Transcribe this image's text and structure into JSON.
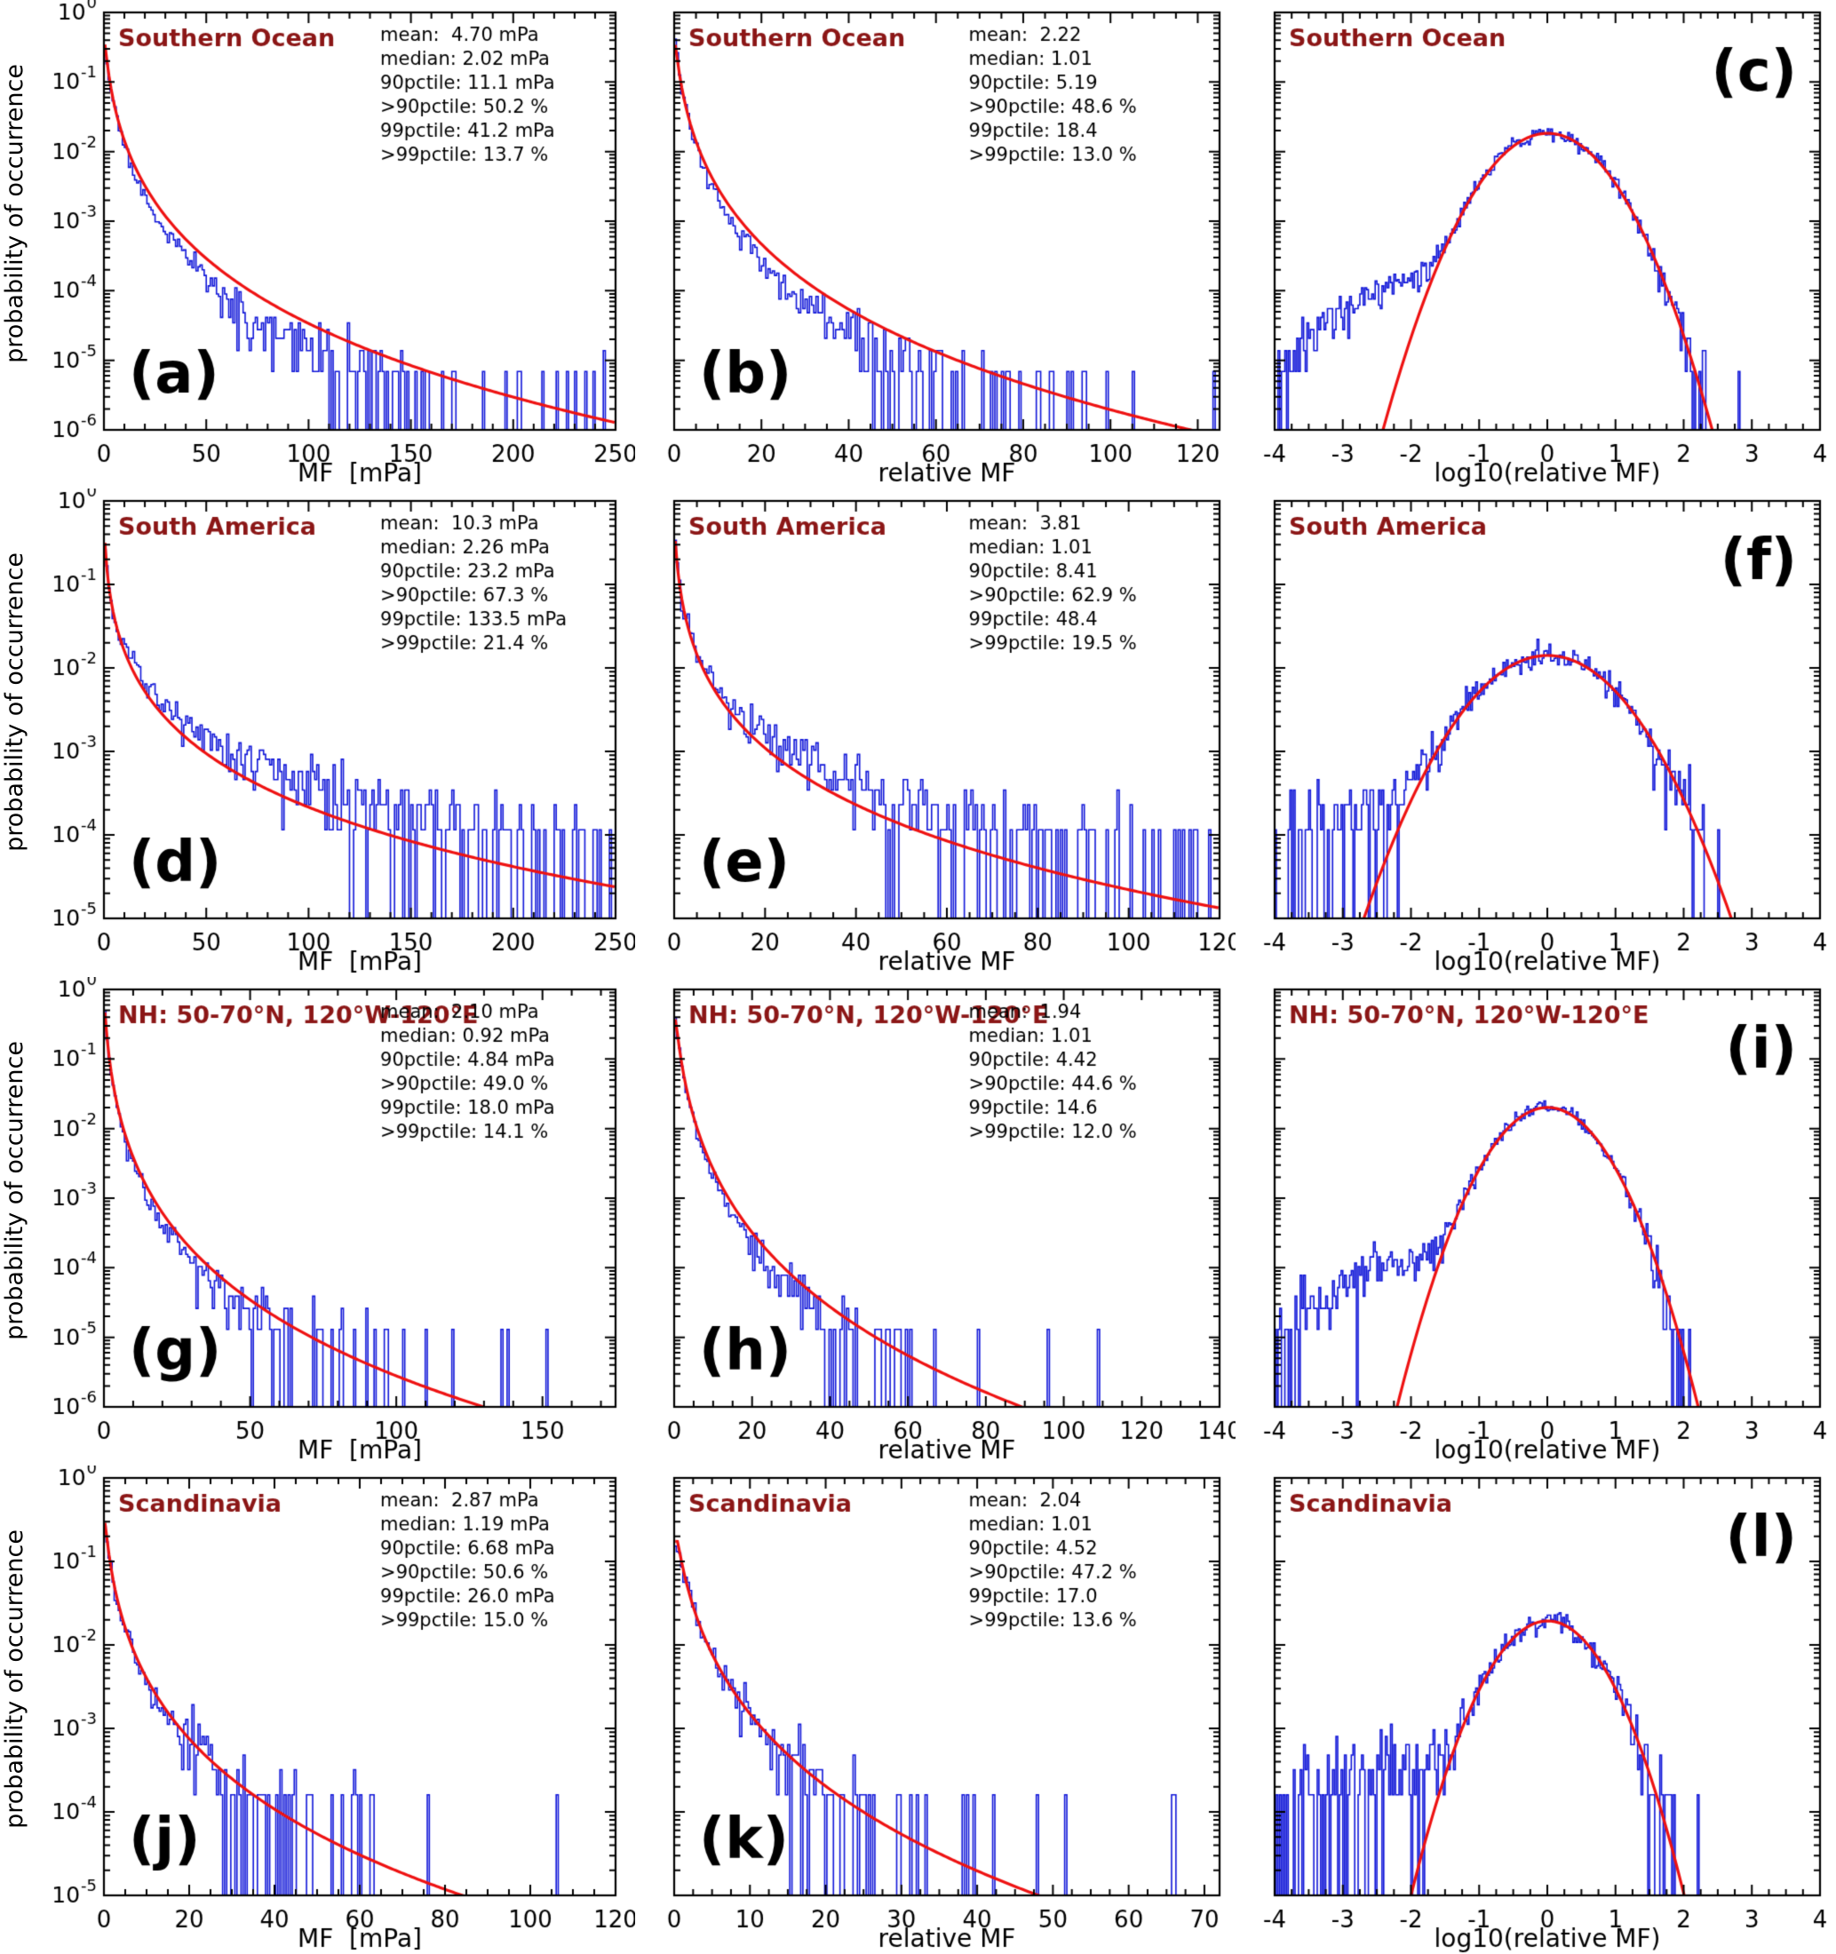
{
  "figure": {
    "ylabel": "probability of occurrence",
    "colors": {
      "histogram_blue": "#1016d8",
      "fit_red": "#ee1111",
      "region_label": "#8b1616",
      "axis": "#000000",
      "panel_letter": "#000000"
    }
  },
  "chart_data": [
    {
      "panel_letter": "(a)",
      "letter_pos": "bl",
      "type": "line",
      "region": "Southern Ocean",
      "xlabel": "MF  [mPa]",
      "xlim": [
        0,
        250
      ],
      "xticks": [
        0,
        50,
        100,
        150,
        200,
        250
      ],
      "xminor": 10,
      "ylim_exp": [
        -6,
        0
      ],
      "show_ytick_labels": true,
      "stats": [
        "mean:  4.70 mPa",
        "median: 2.02 mPa",
        "90pctile: 11.1 mPa",
        ">90pctile: 50.2 %",
        "99pctile: 41.2 mPa",
        ">99pctile: 13.7 %"
      ],
      "model": {
        "dist": "lognormal-x",
        "median": 2.02,
        "mean": 4.7,
        "nbins": 250,
        "single_prob": 6.9e-06,
        "mid_bias": -0.9,
        "seed": 11
      }
    },
    {
      "panel_letter": "(b)",
      "letter_pos": "bl",
      "type": "line",
      "region": "Southern Ocean",
      "xlabel": "relative MF",
      "xlim": [
        0,
        125
      ],
      "xticks": [
        0,
        20,
        40,
        60,
        80,
        100,
        120
      ],
      "xminor": 5,
      "ylim_exp": [
        -6,
        0
      ],
      "show_ytick_labels": false,
      "stats": [
        "mean:  2.22",
        "median: 1.01",
        "90pctile: 5.19",
        ">90pctile: 48.6 %",
        "99pctile: 18.4",
        ">99pctile: 13.0 %"
      ],
      "model": {
        "dist": "lognormal-x",
        "median": 1.01,
        "mean": 2.22,
        "nbins": 250,
        "single_prob": 6.9e-06,
        "mid_bias": -0.9,
        "seed": 12
      }
    },
    {
      "panel_letter": "(c)",
      "letter_pos": "tr",
      "type": "line",
      "region": "Southern Ocean",
      "xlabel": "log10(relative MF)",
      "xlim": [
        -4,
        4
      ],
      "xticks": [
        -4,
        -3,
        -2,
        -1,
        0,
        1,
        2,
        3,
        4
      ],
      "xminor": 0.25,
      "ylim_exp": [
        -6,
        0
      ],
      "show_ytick_labels": false,
      "stats": [],
      "model": {
        "dist": "lognormal-log10",
        "median": 1.01,
        "mean": 2.22,
        "nbins": 320,
        "single_prob": 6.9e-06,
        "tail": {
          "amp": 0.00012,
          "mu": -2.0,
          "sigma": 0.8
        },
        "seed": 13
      }
    },
    {
      "panel_letter": "(d)",
      "letter_pos": "bl",
      "type": "line",
      "region": "South America",
      "xlabel": "MF  [mPa]",
      "xlim": [
        0,
        250
      ],
      "xticks": [
        0,
        50,
        100,
        150,
        200,
        250
      ],
      "xminor": 10,
      "ylim_exp": [
        -5,
        0
      ],
      "show_ytick_labels": true,
      "stats": [
        "mean:  10.3 mPa",
        "median: 2.26 mPa",
        "90pctile: 23.2 mPa",
        ">90pctile: 67.3 %",
        "99pctile: 133.5 mPa",
        ">99pctile: 21.4 %"
      ],
      "model": {
        "dist": "lognormal-x",
        "median": 2.26,
        "mean": 10.3,
        "nbins": 250,
        "single_prob": 0.000115,
        "mid_bias": 0.7,
        "seed": 21
      }
    },
    {
      "panel_letter": "(e)",
      "letter_pos": "bl",
      "type": "line",
      "region": "South America",
      "xlabel": "relative MF",
      "xlim": [
        0,
        120
      ],
      "xticks": [
        0,
        20,
        40,
        60,
        80,
        100,
        120
      ],
      "xminor": 5,
      "ylim_exp": [
        -5,
        0
      ],
      "show_ytick_labels": false,
      "stats": [
        "mean:  3.81",
        "median: 1.01",
        "90pctile: 8.41",
        ">90pctile: 62.9 %",
        "99pctile: 48.4",
        ">99pctile: 19.5 %"
      ],
      "model": {
        "dist": "lognormal-x",
        "median": 1.01,
        "mean": 3.81,
        "nbins": 250,
        "single_prob": 0.000115,
        "mid_bias": 0.7,
        "seed": 22
      }
    },
    {
      "panel_letter": "(f)",
      "letter_pos": "tr",
      "type": "line",
      "region": "South America",
      "xlabel": "log10(relative MF)",
      "xlim": [
        -4,
        4
      ],
      "xticks": [
        -4,
        -3,
        -2,
        -1,
        0,
        1,
        2,
        3,
        4
      ],
      "xminor": 0.25,
      "ylim_exp": [
        -5,
        0
      ],
      "show_ytick_labels": false,
      "stats": [],
      "model": {
        "dist": "lognormal-log10",
        "median": 1.01,
        "mean": 3.81,
        "nbins": 320,
        "single_prob": 0.000115,
        "tail": {
          "amp": 0.00018,
          "mu": -2.3,
          "sigma": 1.1
        },
        "seed": 23
      }
    },
    {
      "panel_letter": "(g)",
      "letter_pos": "bl",
      "type": "line",
      "region": "NH: 50-70°N, 120°W-120°E",
      "xlabel": "MF  [mPa]",
      "xlim": [
        0,
        175
      ],
      "xticks": [
        0,
        50,
        100,
        150
      ],
      "xminor": 10,
      "ylim_exp": [
        -6,
        0
      ],
      "show_ytick_labels": true,
      "stats": [
        "mean:  2.10 mPa",
        "median: 0.92 mPa",
        "90pctile: 4.84 mPa",
        ">90pctile: 49.0 %",
        "99pctile: 18.0 mPa",
        ">99pctile: 14.1 %"
      ],
      "model": {
        "dist": "lognormal-x",
        "median": 0.92,
        "mean": 2.1,
        "nbins": 250,
        "single_prob": 1.3e-05,
        "mid_bias": -0.5,
        "seed": 31
      }
    },
    {
      "panel_letter": "(h)",
      "letter_pos": "bl",
      "type": "line",
      "region": "NH: 50-70°N, 120°W-120°E",
      "xlabel": "relative MF",
      "xlim": [
        0,
        140
      ],
      "xticks": [
        0,
        20,
        40,
        60,
        80,
        100,
        120,
        140
      ],
      "xminor": 5,
      "ylim_exp": [
        -6,
        0
      ],
      "show_ytick_labels": false,
      "stats": [
        "mean:  1.94",
        "median: 1.01",
        "90pctile: 4.42",
        ">90pctile: 44.6 %",
        "99pctile: 14.6",
        ">99pctile: 12.0 %"
      ],
      "model": {
        "dist": "lognormal-x",
        "median": 1.01,
        "mean": 1.94,
        "nbins": 250,
        "single_prob": 1.3e-05,
        "mid_bias": -0.5,
        "seed": 32
      }
    },
    {
      "panel_letter": "(i)",
      "letter_pos": "tr",
      "type": "line",
      "region": "NH: 50-70°N, 120°W-120°E",
      "xlabel": "log10(relative MF)",
      "xlim": [
        -4,
        4
      ],
      "xticks": [
        -4,
        -3,
        -2,
        -1,
        0,
        1,
        2,
        3,
        4
      ],
      "xminor": 0.25,
      "ylim_exp": [
        -6,
        0
      ],
      "show_ytick_labels": false,
      "stats": [],
      "model": {
        "dist": "lognormal-log10",
        "median": 1.01,
        "mean": 1.94,
        "nbins": 320,
        "single_prob": 1.3e-05,
        "tail": {
          "amp": 0.00012,
          "mu": -1.9,
          "sigma": 0.9
        },
        "seed": 33
      }
    },
    {
      "panel_letter": "(j)",
      "letter_pos": "bl",
      "type": "line",
      "region": "Scandinavia",
      "xlabel": "MF  [mPa]",
      "xlim": [
        0,
        120
      ],
      "xticks": [
        0,
        20,
        40,
        60,
        80,
        100,
        120
      ],
      "xminor": 5,
      "ylim_exp": [
        -5,
        0
      ],
      "show_ytick_labels": true,
      "stats": [
        "mean:  2.87 mPa",
        "median: 1.19 mPa",
        "90pctile: 6.68 mPa",
        ">90pctile: 50.6 %",
        "99pctile: 26.0 mPa",
        ">99pctile: 15.0 %"
      ],
      "model": {
        "dist": "lognormal-x",
        "median": 1.19,
        "mean": 2.87,
        "nbins": 250,
        "single_prob": 0.00016,
        "mid_bias": -0.2,
        "seed": 41
      }
    },
    {
      "panel_letter": "(k)",
      "letter_pos": "bl",
      "type": "line",
      "region": "Scandinavia",
      "xlabel": "relative MF",
      "xlim": [
        0,
        72
      ],
      "xticks": [
        0,
        10,
        20,
        30,
        40,
        50,
        60,
        70
      ],
      "xminor": 2.5,
      "ylim_exp": [
        -5,
        0
      ],
      "show_ytick_labels": false,
      "stats": [
        "mean:  2.04",
        "median: 1.01",
        "90pctile: 4.52",
        ">90pctile: 47.2 %",
        "99pctile: 17.0",
        ">99pctile: 13.6 %"
      ],
      "model": {
        "dist": "lognormal-x",
        "median": 1.01,
        "mean": 2.04,
        "nbins": 250,
        "single_prob": 0.00016,
        "mid_bias": -0.2,
        "seed": 42
      }
    },
    {
      "panel_letter": "(l)",
      "letter_pos": "tr",
      "type": "line",
      "region": "Scandinavia",
      "xlabel": "log10(relative MF)",
      "xlim": [
        -4,
        4
      ],
      "xticks": [
        -4,
        -3,
        -2,
        -1,
        0,
        1,
        2,
        3,
        4
      ],
      "xminor": 0.25,
      "ylim_exp": [
        -5,
        0
      ],
      "show_ytick_labels": false,
      "stats": [],
      "model": {
        "dist": "lognormal-log10",
        "median": 1.01,
        "mean": 2.04,
        "nbins": 320,
        "single_prob": 0.00016,
        "tail": {
          "amp": 0.00032,
          "mu": -2.0,
          "sigma": 1.0
        },
        "seed": 43
      }
    }
  ]
}
